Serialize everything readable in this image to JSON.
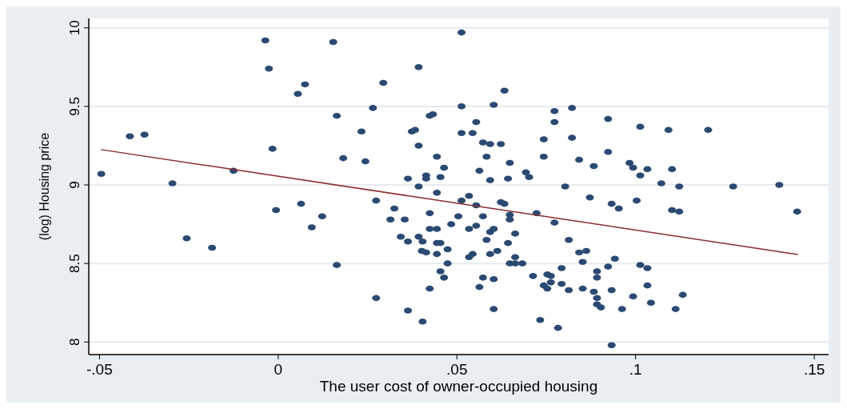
{
  "chart_data": {
    "type": "scatter",
    "xlabel": "The user cost of owner-occupied housing",
    "ylabel": "(log) Housing price",
    "xlim": [
      -0.053,
      0.154
    ],
    "ylim": [
      7.92,
      10.06
    ],
    "xticks": [
      {
        "value": -0.05,
        "label": "-.05"
      },
      {
        "value": 0,
        "label": "0"
      },
      {
        "value": 0.05,
        "label": ".05"
      },
      {
        "value": 0.1,
        "label": ".1"
      },
      {
        "value": 0.15,
        "label": ".15"
      }
    ],
    "yticks": [
      8,
      8.5,
      9,
      9.5,
      10
    ],
    "grid": "y",
    "series": [
      {
        "marker": "circle",
        "color": "#2a4a72",
        "x": [
          -0.0495,
          -0.0415,
          -0.0374,
          -0.0296,
          -0.0256,
          -0.0185,
          -0.0125,
          -0.0036,
          -0.0026,
          -0.0016,
          -0.0006,
          0.0055,
          0.0075,
          0.0064,
          0.0123,
          0.0094,
          0.0154,
          0.0164,
          0.0164,
          0.0182,
          0.0233,
          0.0244,
          0.0265,
          0.0294,
          0.0274,
          0.0274,
          0.0325,
          0.0314,
          0.0354,
          0.0343,
          0.0363,
          0.0363,
          0.0363,
          0.0374,
          0.0383,
          0.0393,
          0.0393,
          0.0393,
          0.0393,
          0.0404,
          0.0402,
          0.0414,
          0.0404,
          0.0414,
          0.0414,
          0.0424,
          0.0424,
          0.0424,
          0.0424,
          0.0433,
          0.0444,
          0.0444,
          0.0444,
          0.0444,
          0.0454,
          0.0444,
          0.0454,
          0.0464,
          0.0474,
          0.0474,
          0.0454,
          0.0464,
          0.0484,
          0.0504,
          0.0513,
          0.0513,
          0.0513,
          0.0513,
          0.0534,
          0.0534,
          0.0544,
          0.0554,
          0.0554,
          0.0554,
          0.0534,
          0.0544,
          0.0563,
          0.0563,
          0.0573,
          0.0593,
          0.0623,
          0.0583,
          0.0573,
          0.0573,
          0.0593,
          0.0593,
          0.0603,
          0.0583,
          0.0593,
          0.0613,
          0.0603,
          0.0603,
          0.0603,
          0.0633,
          0.0648,
          0.0643,
          0.0623,
          0.0633,
          0.0648,
          0.0648,
          0.0643,
          0.0648,
          0.0663,
          0.0663,
          0.0663,
          0.0683,
          0.0693,
          0.0702,
          0.0713,
          0.0723,
          0.0743,
          0.0743,
          0.0733,
          0.0743,
          0.0753,
          0.0753,
          0.0763,
          0.0763,
          0.0773,
          0.0773,
          0.0773,
          0.0783,
          0.0793,
          0.0793,
          0.0803,
          0.0813,
          0.0813,
          0.0822,
          0.0822,
          0.0842,
          0.0842,
          0.0862,
          0.0852,
          0.0852,
          0.0872,
          0.0883,
          0.0883,
          0.0892,
          0.0892,
          0.0892,
          0.0892,
          0.0903,
          0.0923,
          0.0923,
          0.0923,
          0.0933,
          0.0933,
          0.0933,
          0.0942,
          0.0953,
          0.0962,
          0.0983,
          0.0993,
          0.0993,
          0.1003,
          0.1013,
          0.1013,
          0.1013,
          0.1033,
          0.1033,
          0.1033,
          0.1043,
          0.1072,
          0.1092,
          0.1102,
          0.1102,
          0.1122,
          0.1122,
          0.1112,
          0.1132,
          0.1203,
          0.1273,
          0.1402,
          0.1452
        ],
        "values": [
          9.07,
          9.31,
          9.32,
          9.01,
          8.66,
          8.6,
          9.09,
          9.92,
          9.74,
          9.23,
          8.84,
          9.58,
          9.64,
          8.88,
          8.8,
          8.73,
          9.91,
          9.44,
          8.49,
          9.17,
          9.34,
          9.15,
          9.49,
          9.65,
          8.9,
          8.28,
          8.85,
          8.78,
          8.78,
          8.67,
          8.64,
          9.04,
          8.2,
          9.34,
          9.35,
          9.75,
          9.25,
          8.99,
          8.67,
          8.64,
          8.58,
          8.57,
          8.13,
          9.06,
          9.04,
          8.82,
          8.72,
          8.34,
          9.44,
          9.45,
          9.18,
          8.95,
          8.72,
          8.63,
          8.63,
          8.56,
          9.05,
          9.11,
          8.59,
          8.5,
          8.45,
          8.41,
          8.75,
          8.8,
          9.97,
          9.5,
          9.33,
          8.9,
          8.93,
          8.72,
          9.33,
          9.4,
          8.87,
          8.74,
          8.54,
          8.56,
          9.09,
          8.35,
          9.27,
          9.26,
          9.26,
          9.18,
          8.8,
          8.41,
          9.03,
          8.7,
          8.72,
          8.65,
          8.56,
          8.58,
          9.51,
          8.4,
          8.21,
          9.6,
          9.14,
          9.04,
          8.89,
          8.88,
          8.81,
          8.78,
          8.63,
          8.5,
          8.69,
          8.54,
          8.5,
          8.5,
          9.08,
          9.05,
          8.42,
          8.82,
          9.29,
          9.18,
          8.14,
          8.36,
          8.34,
          8.43,
          8.42,
          8.38,
          9.47,
          9.4,
          8.76,
          8.09,
          8.47,
          8.37,
          8.99,
          8.65,
          8.33,
          9.49,
          9.3,
          9.16,
          8.57,
          8.58,
          8.51,
          8.34,
          8.92,
          9.12,
          8.32,
          8.28,
          8.45,
          8.41,
          8.24,
          8.22,
          9.42,
          9.21,
          8.48,
          8.88,
          8.33,
          7.98,
          8.53,
          8.85,
          8.21,
          9.14,
          9.11,
          8.29,
          8.9,
          9.37,
          9.06,
          8.49,
          9.1,
          8.47,
          8.36,
          8.25,
          9.01,
          9.35,
          9.1,
          8.84,
          8.83,
          8.99,
          8.21,
          8.3,
          9.35,
          8.99,
          9.0,
          8.83
        ]
      },
      {
        "type": "line",
        "color": "#8b2c2c",
        "x": [
          -0.0496,
          0.1454
        ],
        "values": [
          9.225,
          8.557
        ]
      }
    ]
  }
}
